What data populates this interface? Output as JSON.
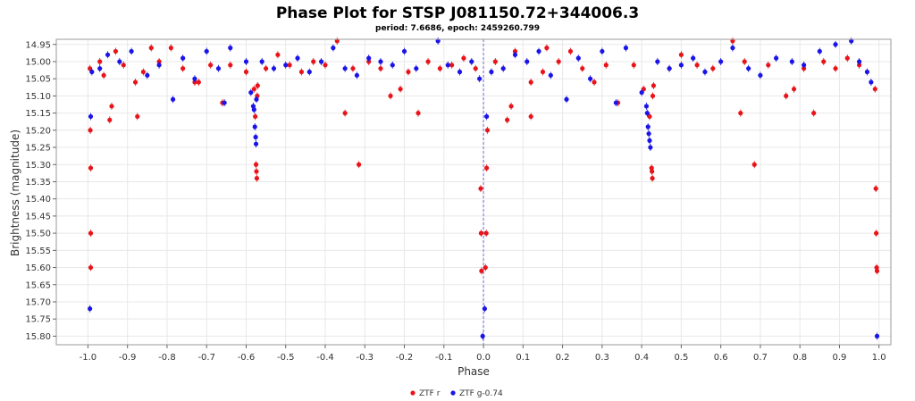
{
  "chart_data": {
    "type": "scatter",
    "title": "Phase Plot for STSP J081150.72+344006.3",
    "subtitle": "period: 7.6686, epoch: 2459260.799",
    "xlabel": "Phase",
    "ylabel": "Brightness (magnitude)",
    "xlim": [
      -1.08,
      1.03
    ],
    "ylim": [
      15.825,
      14.935
    ],
    "y_inverted": true,
    "grid": true,
    "legend_position": "bottom-center",
    "x_ticks": [
      -1.0,
      -0.9,
      -0.8,
      -0.7,
      -0.6,
      -0.5,
      -0.4,
      -0.3,
      -0.2,
      -0.1,
      0.0,
      0.1,
      0.2,
      0.3,
      0.4,
      0.5,
      0.6,
      0.7,
      0.8,
      0.9,
      1.0
    ],
    "x_tick_labels": [
      "-1.0",
      "-0.9",
      "-0.8",
      "-0.7",
      "-0.6",
      "-0.5",
      "-0.4",
      "-0.3",
      "-0.2",
      "-0.1",
      "0.0",
      "0.1",
      "0.2",
      "0.3",
      "0.4",
      "0.5",
      "0.6",
      "0.7",
      "0.8",
      "0.9",
      "1.0"
    ],
    "y_ticks": [
      14.95,
      15.0,
      15.05,
      15.1,
      15.15,
      15.2,
      15.25,
      15.3,
      15.35,
      15.4,
      15.45,
      15.5,
      15.55,
      15.6,
      15.65,
      15.7,
      15.75,
      15.8
    ],
    "y_tick_labels": [
      "14.95",
      "15.00",
      "15.05",
      "15.10",
      "15.15",
      "15.20",
      "15.25",
      "15.30",
      "15.35",
      "15.40",
      "15.45",
      "15.50",
      "15.55",
      "15.60",
      "15.65",
      "15.70",
      "15.75",
      "15.80"
    ],
    "reference_line_x": 0.0,
    "series": [
      {
        "name": "ZTF r",
        "color": "#e8141a",
        "points": [
          [
            -0.995,
            15.02
          ],
          [
            -0.994,
            15.2
          ],
          [
            -0.993,
            15.31
          ],
          [
            -0.993,
            15.5
          ],
          [
            -0.993,
            15.6
          ],
          [
            -0.97,
            15.0
          ],
          [
            -0.96,
            15.04
          ],
          [
            -0.945,
            15.17
          ],
          [
            -0.94,
            15.13
          ],
          [
            -0.93,
            14.97
          ],
          [
            -0.91,
            15.01
          ],
          [
            -0.88,
            15.06
          ],
          [
            -0.875,
            15.16
          ],
          [
            -0.86,
            15.03
          ],
          [
            -0.84,
            14.96
          ],
          [
            -0.82,
            15.0
          ],
          [
            -0.79,
            14.96
          ],
          [
            -0.76,
            15.02
          ],
          [
            -0.73,
            15.06
          ],
          [
            -0.72,
            15.06
          ],
          [
            -0.69,
            15.01
          ],
          [
            -0.66,
            15.12
          ],
          [
            -0.64,
            15.01
          ],
          [
            -0.6,
            15.03
          ],
          [
            -0.58,
            15.08
          ],
          [
            -0.577,
            15.16
          ],
          [
            -0.575,
            15.3
          ],
          [
            -0.574,
            15.32
          ],
          [
            -0.573,
            15.34
          ],
          [
            -0.572,
            15.1
          ],
          [
            -0.571,
            15.07
          ],
          [
            -0.55,
            15.02
          ],
          [
            -0.52,
            14.98
          ],
          [
            -0.49,
            15.01
          ],
          [
            -0.46,
            15.03
          ],
          [
            -0.43,
            15.0
          ],
          [
            -0.4,
            15.01
          ],
          [
            -0.37,
            14.94
          ],
          [
            -0.35,
            15.15
          ],
          [
            -0.33,
            15.02
          ],
          [
            -0.315,
            15.3
          ],
          [
            -0.29,
            15.0
          ],
          [
            -0.26,
            15.02
          ],
          [
            -0.235,
            15.1
          ],
          [
            -0.21,
            15.08
          ],
          [
            -0.19,
            15.03
          ],
          [
            -0.165,
            15.15
          ],
          [
            -0.14,
            15.0
          ],
          [
            -0.11,
            15.02
          ],
          [
            -0.08,
            15.01
          ],
          [
            -0.05,
            14.99
          ],
          [
            -0.02,
            15.02
          ],
          [
            -0.007,
            15.37
          ],
          [
            -0.006,
            15.5
          ],
          [
            -0.005,
            15.61
          ],
          [
            0.005,
            15.6
          ],
          [
            0.007,
            15.5
          ],
          [
            0.008,
            15.31
          ],
          [
            0.01,
            15.2
          ],
          [
            0.03,
            15.0
          ],
          [
            0.06,
            15.17
          ],
          [
            0.07,
            15.13
          ],
          [
            0.08,
            14.97
          ],
          [
            0.12,
            15.16
          ],
          [
            0.12,
            15.06
          ],
          [
            0.15,
            15.03
          ],
          [
            0.16,
            14.96
          ],
          [
            0.19,
            15.0
          ],
          [
            0.22,
            14.97
          ],
          [
            0.25,
            15.02
          ],
          [
            0.28,
            15.06
          ],
          [
            0.31,
            15.01
          ],
          [
            0.34,
            15.12
          ],
          [
            0.38,
            15.01
          ],
          [
            0.405,
            15.08
          ],
          [
            0.42,
            15.16
          ],
          [
            0.425,
            15.31
          ],
          [
            0.426,
            15.32
          ],
          [
            0.427,
            15.34
          ],
          [
            0.428,
            15.1
          ],
          [
            0.43,
            15.07
          ],
          [
            0.47,
            15.02
          ],
          [
            0.5,
            14.98
          ],
          [
            0.54,
            15.01
          ],
          [
            0.58,
            15.02
          ],
          [
            0.63,
            14.94
          ],
          [
            0.65,
            15.15
          ],
          [
            0.66,
            15.0
          ],
          [
            0.685,
            15.3
          ],
          [
            0.72,
            15.01
          ],
          [
            0.765,
            15.1
          ],
          [
            0.785,
            15.08
          ],
          [
            0.81,
            15.02
          ],
          [
            0.835,
            15.15
          ],
          [
            0.86,
            15.0
          ],
          [
            0.89,
            15.02
          ],
          [
            0.92,
            14.99
          ],
          [
            0.95,
            15.01
          ],
          [
            0.99,
            15.08
          ],
          [
            0.992,
            15.37
          ],
          [
            0.993,
            15.5
          ],
          [
            0.994,
            15.6
          ],
          [
            0.995,
            15.61
          ]
        ]
      },
      {
        "name": "ZTF g-0.74",
        "color": "#1a14e8",
        "points": [
          [
            -0.995,
            15.72
          ],
          [
            -0.993,
            15.16
          ],
          [
            -0.99,
            15.03
          ],
          [
            -0.97,
            15.02
          ],
          [
            -0.95,
            14.98
          ],
          [
            -0.92,
            15.0
          ],
          [
            -0.89,
            14.97
          ],
          [
            -0.85,
            15.04
          ],
          [
            -0.82,
            15.01
          ],
          [
            -0.785,
            15.11
          ],
          [
            -0.76,
            14.99
          ],
          [
            -0.73,
            15.05
          ],
          [
            -0.7,
            14.97
          ],
          [
            -0.67,
            15.02
          ],
          [
            -0.655,
            15.12
          ],
          [
            -0.64,
            14.96
          ],
          [
            -0.6,
            15.0
          ],
          [
            -0.588,
            15.09
          ],
          [
            -0.582,
            15.13
          ],
          [
            -0.58,
            15.14
          ],
          [
            -0.578,
            15.19
          ],
          [
            -0.576,
            15.22
          ],
          [
            -0.575,
            15.24
          ],
          [
            -0.574,
            15.11
          ],
          [
            -0.56,
            15.0
          ],
          [
            -0.53,
            15.02
          ],
          [
            -0.5,
            15.01
          ],
          [
            -0.47,
            14.99
          ],
          [
            -0.44,
            15.03
          ],
          [
            -0.41,
            15.0
          ],
          [
            -0.38,
            14.96
          ],
          [
            -0.35,
            15.02
          ],
          [
            -0.32,
            15.04
          ],
          [
            -0.29,
            14.99
          ],
          [
            -0.26,
            15.0
          ],
          [
            -0.23,
            15.01
          ],
          [
            -0.2,
            14.97
          ],
          [
            -0.17,
            15.02
          ],
          [
            -0.115,
            14.94
          ],
          [
            -0.09,
            15.01
          ],
          [
            -0.06,
            15.03
          ],
          [
            -0.03,
            15.0
          ],
          [
            -0.01,
            15.05
          ],
          [
            -0.002,
            15.8
          ],
          [
            0.003,
            15.72
          ],
          [
            0.008,
            15.16
          ],
          [
            0.02,
            15.03
          ],
          [
            0.05,
            15.02
          ],
          [
            0.08,
            14.98
          ],
          [
            0.11,
            15.0
          ],
          [
            0.14,
            14.97
          ],
          [
            0.17,
            15.04
          ],
          [
            0.21,
            15.11
          ],
          [
            0.24,
            14.99
          ],
          [
            0.27,
            15.05
          ],
          [
            0.3,
            14.97
          ],
          [
            0.335,
            15.12
          ],
          [
            0.36,
            14.96
          ],
          [
            0.4,
            15.09
          ],
          [
            0.412,
            15.13
          ],
          [
            0.414,
            15.15
          ],
          [
            0.416,
            15.19
          ],
          [
            0.418,
            15.21
          ],
          [
            0.42,
            15.23
          ],
          [
            0.422,
            15.25
          ],
          [
            0.44,
            15.0
          ],
          [
            0.47,
            15.02
          ],
          [
            0.5,
            15.01
          ],
          [
            0.53,
            14.99
          ],
          [
            0.56,
            15.03
          ],
          [
            0.6,
            15.0
          ],
          [
            0.63,
            14.96
          ],
          [
            0.67,
            15.02
          ],
          [
            0.7,
            15.04
          ],
          [
            0.74,
            14.99
          ],
          [
            0.78,
            15.0
          ],
          [
            0.81,
            15.01
          ],
          [
            0.85,
            14.97
          ],
          [
            0.89,
            14.95
          ],
          [
            0.93,
            14.94
          ],
          [
            0.95,
            15.0
          ],
          [
            0.97,
            15.03
          ],
          [
            0.98,
            15.06
          ],
          [
            0.995,
            15.8
          ]
        ]
      }
    ]
  }
}
